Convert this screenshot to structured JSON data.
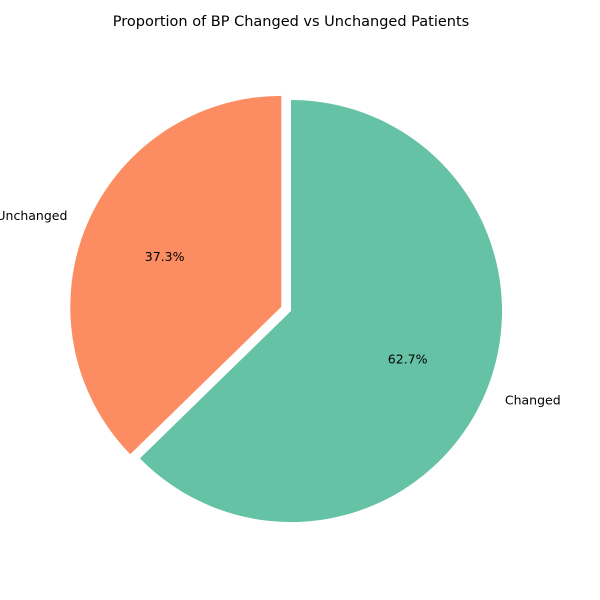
{
  "chart_data": {
    "type": "pie",
    "title": "Proportion of BP Changed vs Unchanged Patients",
    "categories": [
      "Unchanged",
      "Changed"
    ],
    "values": [
      37.3,
      62.7
    ],
    "percent_labels": [
      "37.3%",
      "62.7%"
    ],
    "colors": [
      "#fc8d62",
      "#66c2a5"
    ],
    "explode": [
      0.05,
      0
    ],
    "start_angle_deg": 90,
    "counterclock": true,
    "legend": "none"
  }
}
